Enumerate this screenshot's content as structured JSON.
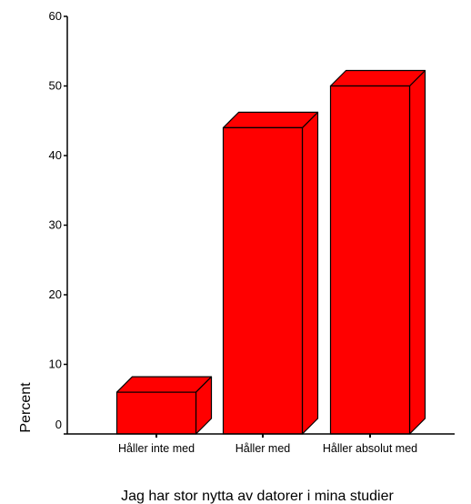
{
  "chart_data": {
    "type": "bar",
    "style": "3d",
    "categories": [
      "Håller inte med",
      "Håller med",
      "Håller absolut med"
    ],
    "values": [
      6,
      44,
      50
    ],
    "xlabel": "Jag har stor nytta av datorer i mina studier",
    "ylabel": "Percent",
    "ylim": [
      0,
      60
    ],
    "yticks": [
      "0",
      "10",
      "20",
      "30",
      "40",
      "50",
      "60"
    ],
    "grid": false,
    "legend": "none",
    "colors": {
      "bar": "#ff0000",
      "edge": "#000000",
      "background": "#ffffff"
    }
  }
}
